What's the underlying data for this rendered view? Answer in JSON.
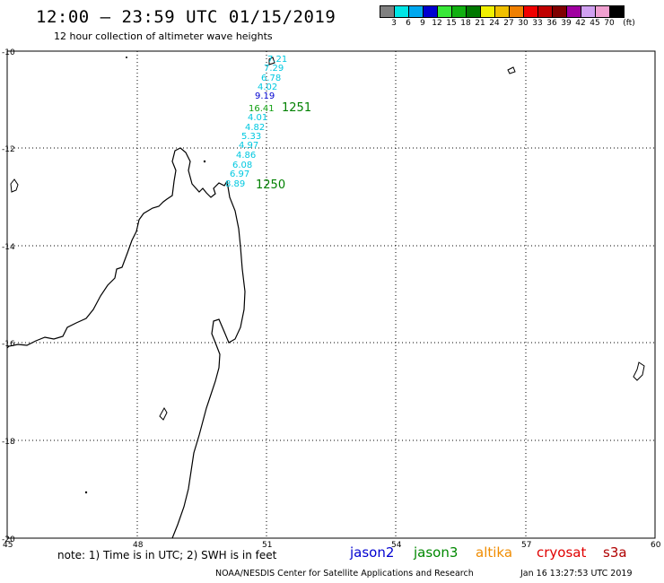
{
  "header": {
    "title": "12:00 – 23:59 UTC 01/15/2019",
    "subtitle": "12 hour collection of altimeter wave heights"
  },
  "scale": {
    "labels": [
      "3",
      "6",
      "9",
      "12",
      "15",
      "18",
      "21",
      "24",
      "27",
      "30",
      "33",
      "36",
      "39",
      "42",
      "45",
      "70"
    ],
    "unit": "(ft)",
    "colors": [
      "#808080",
      "#00e5e5",
      "#00a8f0",
      "#0000d0",
      "#38e838",
      "#10b010",
      "#007800",
      "#f0f000",
      "#f0c000",
      "#f08000",
      "#f00000",
      "#c00000",
      "#800000",
      "#a000a0",
      "#d0a0f0",
      "#f0a0d0",
      "#000000"
    ]
  },
  "axes": {
    "y_labels": [
      "-10",
      "-12",
      "-14",
      "-16",
      "-18",
      "-20"
    ],
    "x_labels": [
      "45",
      "48",
      "51",
      "54",
      "57",
      "60"
    ]
  },
  "track_labels": {
    "pass_a": "1251",
    "pass_b": "1250"
  },
  "wave_heights": [
    {
      "text": "7.21",
      "color": "#00c8e0"
    },
    {
      "text": "7.29",
      "color": "#00c8e0"
    },
    {
      "text": "6.78",
      "color": "#00c8e0"
    },
    {
      "text": "4.02",
      "color": "#00c8e0"
    },
    {
      "text": "9.19",
      "color": "#0000d0"
    },
    {
      "text": "16.41",
      "color": "#10a010"
    },
    {
      "text": "4.01",
      "color": "#00c8e0"
    },
    {
      "text": "4.82",
      "color": "#00c8e0"
    },
    {
      "text": "5.33",
      "color": "#00c8e0"
    },
    {
      "text": "4.97",
      "color": "#00c8e0"
    },
    {
      "text": "4.86",
      "color": "#00c8e0"
    },
    {
      "text": "6.08",
      "color": "#00c8e0"
    },
    {
      "text": "6.97",
      "color": "#00c8e0"
    },
    {
      "text": "8.89",
      "color": "#00c8e0"
    }
  ],
  "footer": {
    "note": "note: 1) Time is in UTC; 2) SWH is in feet",
    "satellites": [
      {
        "name": "jason2",
        "color": "#0000d0"
      },
      {
        "name": "jason3",
        "color": "#008800"
      },
      {
        "name": "altika",
        "color": "#f08c00"
      },
      {
        "name": "cryosat",
        "color": "#e00000"
      },
      {
        "name": "s3a",
        "color": "#b00000"
      }
    ],
    "credit": "NOAA/NESDIS Center for Satellite Applications and Research",
    "timestamp": "Jan 16 13:27:53 UTC 2019"
  }
}
